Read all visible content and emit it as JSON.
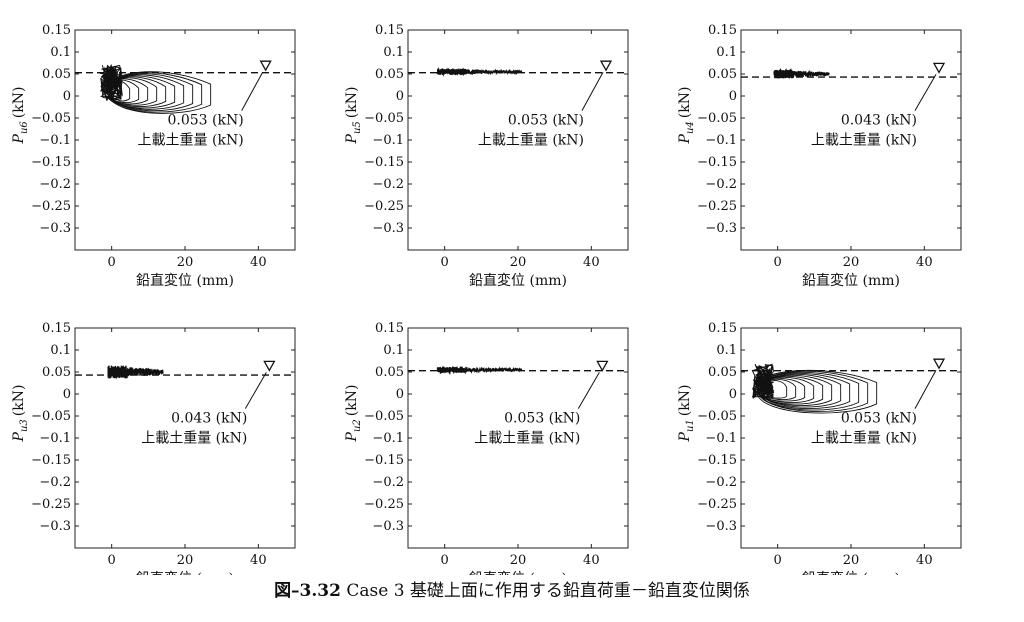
{
  "caption": {
    "number": "図–3.32",
    "text": "Case 3 基礎上面に作用する鉛直荷重－鉛直変位関係"
  },
  "chart_data": [
    {
      "type": "line",
      "ylabel": "P",
      "ylabel_sub": "u6",
      "ylabel_unit": "(kN)",
      "xlabel": "鉛直変位 (mm)",
      "xlim": [
        -10,
        50
      ],
      "ylim": [
        -0.35,
        0.15
      ],
      "xticks": [
        0,
        20,
        40
      ],
      "yticks": [
        0.15,
        0.1,
        0.05,
        0,
        -0.05,
        -0.1,
        -0.15,
        -0.2,
        -0.25,
        -0.3
      ],
      "ytick_labels": [
        "0.15",
        "0.1",
        "0.05",
        "0",
        "−0.05",
        "−0.1",
        "−0.15",
        "−0.2",
        "−0.25",
        "−0.3"
      ],
      "reference_level": 0.053,
      "marker": {
        "x": 42,
        "y": 0.07,
        "symbol": "▽"
      },
      "annotation": [
        "0.053 (kN)",
        "上載土重量 (kN)"
      ],
      "response": {
        "pattern": "cyclic",
        "x_min": -3,
        "x_max": 27,
        "y_max": 0.07,
        "y_min": -0.055
      }
    },
    {
      "type": "line",
      "ylabel": "P",
      "ylabel_sub": "u5",
      "ylabel_unit": "(kN)",
      "xlabel": "鉛直変位 (mm)",
      "xlim": [
        -10,
        50
      ],
      "ylim": [
        -0.35,
        0.15
      ],
      "xticks": [
        0,
        20,
        40
      ],
      "yticks": [
        0.15,
        0.1,
        0.05,
        0,
        -0.05,
        -0.1,
        -0.15,
        -0.2,
        -0.25,
        -0.3
      ],
      "ytick_labels": [
        "0.15",
        "0.1",
        "0.05",
        "0",
        "−0.05",
        "−0.1",
        "−0.15",
        "−0.2",
        "−0.25",
        "−0.3"
      ],
      "reference_level": 0.053,
      "marker": {
        "x": 44,
        "y": 0.07,
        "symbol": "▽"
      },
      "annotation": [
        "0.053 (kN)",
        "上載土重量 (kN)"
      ],
      "response": {
        "pattern": "band",
        "x_min": -2,
        "x_max": 21,
        "y_max": 0.062,
        "y_min": 0.048
      }
    },
    {
      "type": "line",
      "ylabel": "P",
      "ylabel_sub": "u4",
      "ylabel_unit": "(kN)",
      "xlabel": "鉛直変位 (mm)",
      "xlim": [
        -10,
        50
      ],
      "ylim": [
        -0.35,
        0.15
      ],
      "xticks": [
        0,
        20,
        40
      ],
      "yticks": [
        0.15,
        0.1,
        0.05,
        0,
        -0.05,
        -0.1,
        -0.15,
        -0.2,
        -0.25,
        -0.3
      ],
      "ytick_labels": [
        "0.15",
        "0.1",
        "0.05",
        "0",
        "−0.05",
        "−0.1",
        "−0.15",
        "−0.2",
        "−0.25",
        "−0.3"
      ],
      "reference_level": 0.043,
      "marker": {
        "x": 44,
        "y": 0.065,
        "symbol": "▽"
      },
      "annotation": [
        "0.043 (kN)",
        "上載土重量 (kN)"
      ],
      "response": {
        "pattern": "band",
        "x_min": -1,
        "x_max": 14,
        "y_max": 0.06,
        "y_min": 0.04
      }
    },
    {
      "type": "line",
      "ylabel": "P",
      "ylabel_sub": "u3",
      "ylabel_unit": "(kN)",
      "xlabel": "鉛直変位 (mm)",
      "xlim": [
        -10,
        50
      ],
      "ylim": [
        -0.35,
        0.15
      ],
      "xticks": [
        0,
        20,
        40
      ],
      "yticks": [
        0.15,
        0.1,
        0.05,
        0,
        -0.05,
        -0.1,
        -0.15,
        -0.2,
        -0.25,
        -0.3
      ],
      "ytick_labels": [
        "0.15",
        "0.1",
        "0.05",
        "0",
        "−0.05",
        "−0.1",
        "−0.15",
        "−0.2",
        "−0.25",
        "−0.3"
      ],
      "reference_level": 0.043,
      "marker": {
        "x": 43,
        "y": 0.065,
        "symbol": "▽"
      },
      "annotation": [
        "0.043 (kN)",
        "上載土重量 (kN)"
      ],
      "response": {
        "pattern": "band",
        "x_min": -1,
        "x_max": 14,
        "y_max": 0.065,
        "y_min": 0.035
      }
    },
    {
      "type": "line",
      "ylabel": "P",
      "ylabel_sub": "u2",
      "ylabel_unit": "(kN)",
      "xlabel": "鉛直変位 (mm)",
      "xlim": [
        -10,
        50
      ],
      "ylim": [
        -0.35,
        0.15
      ],
      "xticks": [
        0,
        20,
        40
      ],
      "yticks": [
        0.15,
        0.1,
        0.05,
        0,
        -0.05,
        -0.1,
        -0.15,
        -0.2,
        -0.25,
        -0.3
      ],
      "ytick_labels": [
        "0.15",
        "0.1",
        "0.05",
        "0",
        "−0.05",
        "−0.1",
        "−0.15",
        "−0.2",
        "−0.25",
        "−0.3"
      ],
      "reference_level": 0.053,
      "marker": {
        "x": 43,
        "y": 0.065,
        "symbol": "▽"
      },
      "annotation": [
        "0.053 (kN)",
        "上載土重量 (kN)"
      ],
      "response": {
        "pattern": "band",
        "x_min": -2,
        "x_max": 21,
        "y_max": 0.062,
        "y_min": 0.048
      }
    },
    {
      "type": "line",
      "ylabel": "P",
      "ylabel_sub": "u1",
      "ylabel_unit": "(kN)",
      "xlabel": "鉛直変位 (mm)",
      "xlim": [
        -10,
        50
      ],
      "ylim": [
        -0.35,
        0.15
      ],
      "xticks": [
        0,
        20,
        40
      ],
      "yticks": [
        0.15,
        0.1,
        0.05,
        0,
        -0.05,
        -0.1,
        -0.15,
        -0.2,
        -0.25,
        -0.3
      ],
      "ytick_labels": [
        "0.15",
        "0.1",
        "0.05",
        "0",
        "−0.05",
        "−0.1",
        "−0.15",
        "−0.2",
        "−0.25",
        "−0.3"
      ],
      "reference_level": 0.053,
      "marker": {
        "x": 44,
        "y": 0.07,
        "symbol": "▽"
      },
      "annotation": [
        "0.053 (kN)",
        "上載土重量 (kN)"
      ],
      "response": {
        "pattern": "cyclic",
        "x_min": -7,
        "x_max": 27,
        "y_max": 0.068,
        "y_min": -0.06
      }
    }
  ]
}
